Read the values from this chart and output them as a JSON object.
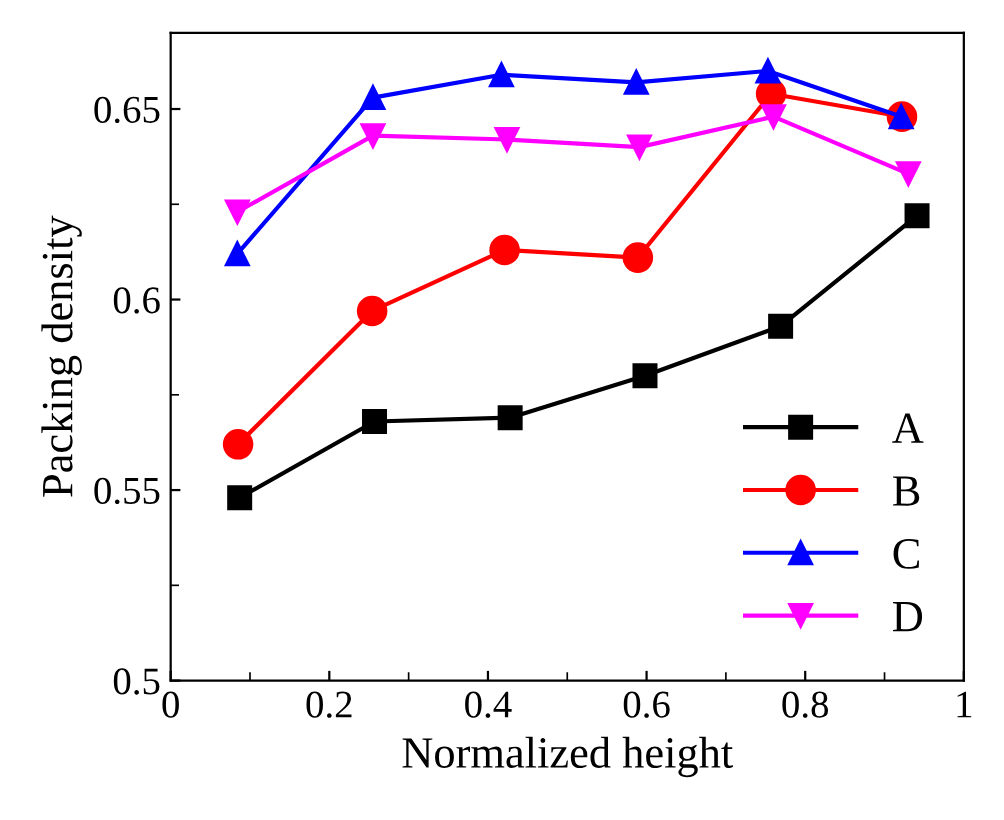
{
  "chart_data": {
    "type": "line",
    "xlabel": "Normalized height",
    "ylabel": "Packing density",
    "xlim": [
      0,
      1
    ],
    "xticks": [
      0,
      0.2,
      0.4,
      0.6,
      0.8,
      1
    ],
    "ylim": [
      0.5,
      0.67
    ],
    "yticks": [
      0.5,
      0.55,
      0.6,
      0.65
    ],
    "legend": "bottom right",
    "grid": false,
    "series": [
      {
        "name": "A",
        "color": "#000000",
        "marker": "square",
        "x": [
          0.087,
          0.257,
          0.428,
          0.598,
          0.769,
          0.941
        ],
        "values": [
          0.548,
          0.568,
          0.569,
          0.58,
          0.593,
          0.622
        ]
      },
      {
        "name": "B",
        "color": "#ff0000",
        "marker": "circle",
        "x": [
          0.085,
          0.254,
          0.421,
          0.589,
          0.757,
          0.922
        ],
        "values": [
          0.562,
          0.597,
          0.613,
          0.611,
          0.654,
          0.648
        ]
      },
      {
        "name": "C",
        "color": "#0000ff",
        "marker": "triangle",
        "x": [
          0.084,
          0.255,
          0.417,
          0.587,
          0.753,
          0.921
        ],
        "values": [
          0.612,
          0.653,
          0.659,
          0.657,
          0.66,
          0.648
        ]
      },
      {
        "name": "D",
        "color": "#ff00ff",
        "marker": "triangle_down",
        "x": [
          0.084,
          0.255,
          0.424,
          0.591,
          0.76,
          0.93
        ],
        "values": [
          0.623,
          0.643,
          0.642,
          0.64,
          0.648,
          0.633
        ]
      }
    ]
  }
}
